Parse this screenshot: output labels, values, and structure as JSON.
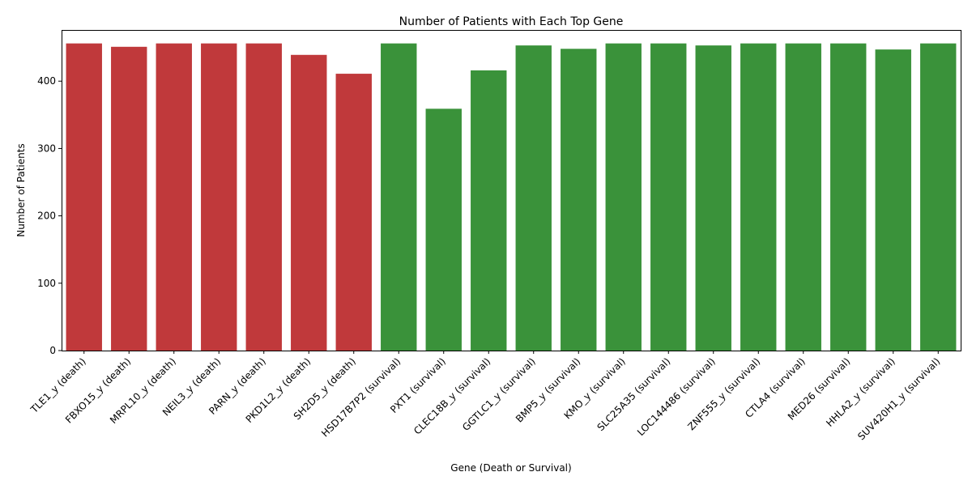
{
  "chart_data": {
    "type": "bar",
    "title": "Number of Patients with Each Top Gene",
    "xlabel": "Gene (Death or Survival)",
    "ylabel": "Number of Patients",
    "ylim": [
      0,
      476
    ],
    "yticks": [
      0,
      100,
      200,
      300,
      400
    ],
    "grid": false,
    "legend": "none",
    "colors": {
      "death": "#c0393b",
      "survival": "#3a923a"
    },
    "categories": [
      "TLE1_y (death)",
      "FBXO15_y (death)",
      "MRPL10_y (death)",
      "NEIL3_y (death)",
      "PARN_y (death)",
      "PKD1L2_y (death)",
      "SH2D5_y (death)",
      "HSD17B7P2 (survival)",
      "PXT1 (survival)",
      "CLEC18B_y (survival)",
      "GGTLC1_y (survival)",
      "BMP5_y (survival)",
      "KMO_y (survival)",
      "SLC25A35 (survival)",
      "LOC144486 (survival)",
      "ZNF555_y (survival)",
      "CTLA4 (survival)",
      "MED26 (survival)",
      "HHLA2_y (survival)",
      "SUV420H1_y (survival)"
    ],
    "groups": [
      "death",
      "death",
      "death",
      "death",
      "death",
      "death",
      "death",
      "survival",
      "survival",
      "survival",
      "survival",
      "survival",
      "survival",
      "survival",
      "survival",
      "survival",
      "survival",
      "survival",
      "survival",
      "survival"
    ],
    "values": [
      456,
      451,
      456,
      456,
      456,
      439,
      411,
      456,
      359,
      416,
      453,
      448,
      456,
      456,
      453,
      456,
      456,
      456,
      447,
      456
    ]
  }
}
